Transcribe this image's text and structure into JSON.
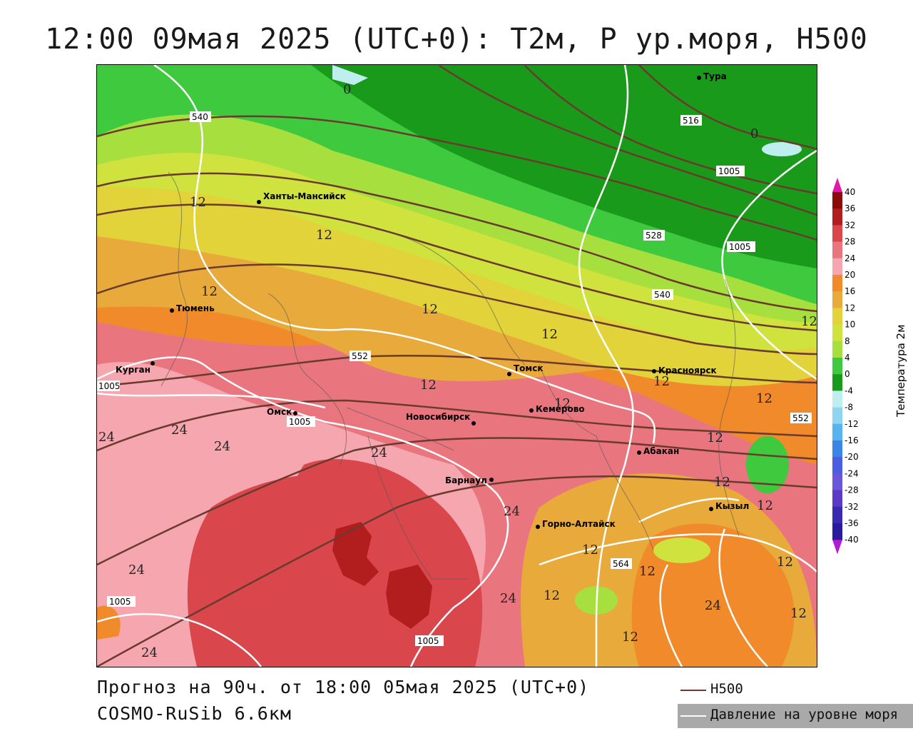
{
  "title": "12:00 09мая 2025 (UTC+0): T2м, P ур.моря, H500",
  "footer": {
    "forecast": "Прогноз на 90ч. от 18:00 05мая 2025 (UTC+0)",
    "model": "COSMO-RuSib 6.6км"
  },
  "legend": {
    "h500_label": "H500",
    "h500_color": "#6b3a2e",
    "pressure_label": "Давление на уровне моря",
    "pressure_color": "#ffffff"
  },
  "colorbar": {
    "title": "Температура 2м",
    "ticks": [
      "40",
      "36",
      "32",
      "28",
      "24",
      "20",
      "16",
      "12",
      "10",
      "8",
      "4",
      "0",
      "-4",
      "-8",
      "-12",
      "-16",
      "-20",
      "-24",
      "-28",
      "-32",
      "-36",
      "-40"
    ],
    "colors": [
      "#8b0a0a",
      "#b21e1e",
      "#d9474c",
      "#e9767f",
      "#f5a6ae",
      "#f08a2a",
      "#e8aa3a",
      "#e3d33a",
      "#cfe23e",
      "#a7e03e",
      "#3ec93e",
      "#1a9a1a",
      "#bfeef0",
      "#8fd4f0",
      "#58b4ef",
      "#3a86e6",
      "#4a5ee0",
      "#6a56d8",
      "#5a3ac6",
      "#3a2ab2",
      "#2a1a9e",
      "#22148c"
    ],
    "top_color": "#e01aa8",
    "bottom_color": "#b21ad8"
  },
  "cities": [
    {
      "name": "Тура"
    },
    {
      "name": "Ханты-Мансийск"
    },
    {
      "name": "Тюмень"
    },
    {
      "name": "Курган"
    },
    {
      "name": "Омск"
    },
    {
      "name": "Томск"
    },
    {
      "name": "Красноярск"
    },
    {
      "name": "Новосибирск"
    },
    {
      "name": "Кемерово"
    },
    {
      "name": "Абакан"
    },
    {
      "name": "Барнаул"
    },
    {
      "name": "Кызыл"
    },
    {
      "name": "Горно-Алтайск"
    }
  ],
  "h500_labels": [
    "540",
    "516",
    "528",
    "540",
    "552",
    "552",
    "564"
  ],
  "pressure_labels": [
    "1005",
    "1005",
    "1005",
    "1005",
    "1005",
    "1005"
  ],
  "temp_labels": [
    "0",
    "0",
    "12",
    "12",
    "12",
    "12",
    "12",
    "12",
    "12",
    "12",
    "12",
    "12",
    "12",
    "12",
    "12",
    "12",
    "12",
    "12",
    "12",
    "12",
    "12",
    "24",
    "24",
    "24",
    "24",
    "24",
    "24",
    "24",
    "24",
    "24"
  ]
}
